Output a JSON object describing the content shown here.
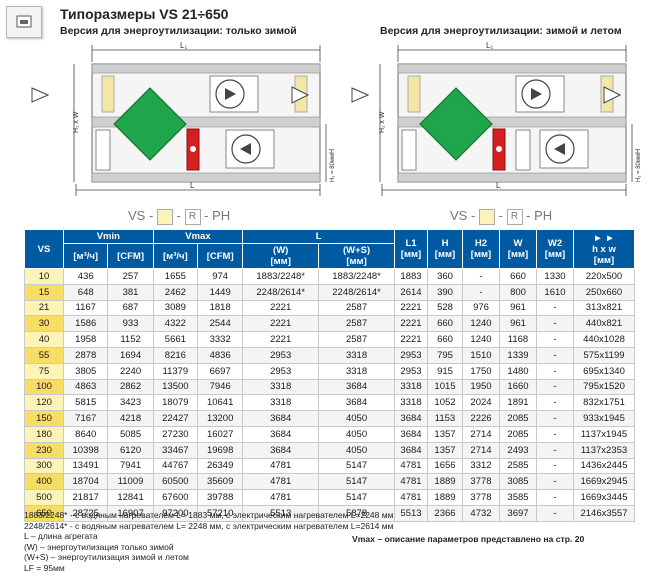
{
  "header": {
    "title": "Типоразмеры VS 21÷650",
    "left_subtitle": "Версия для энергоутилизации: только зимой",
    "right_subtitle": "Версия для энергоутилизации: зимой и летом"
  },
  "diagram": {
    "l1_label": "L₁",
    "l_label": "L",
    "hw_label": "H₁ x W",
    "h_label": "H",
    "hf_label": "H₁ = 80мм",
    "code": {
      "prefix": "VS -",
      "r": "R",
      "suffix": "- PH"
    }
  },
  "table": {
    "headers": {
      "vs": "VS",
      "vmin": "Vmin",
      "vmax": "Vmax",
      "l": "L",
      "l1": "L1",
      "l1_unit": "[мм]",
      "h": "H",
      "h_unit": "[мм]",
      "h2": "H2",
      "h2_unit": "[мм]",
      "w": "W",
      "w_unit": "[мм]",
      "w2": "W2",
      "w2_unit": "[мм]",
      "hxw": "h x w",
      "hxw_unit": "[мм]",
      "m3": "[м³/ч]",
      "cfm": "[CFM]",
      "lw": "(W)",
      "lw_unit": "[мм]",
      "lws": "(W+S)",
      "lws_unit": "[мм]"
    },
    "rows": [
      [
        "10",
        "436",
        "257",
        "1655",
        "974",
        "1883/2248*",
        "1883/2248*",
        "1883",
        "360",
        "-",
        "660",
        "1330",
        "220x500"
      ],
      [
        "15",
        "648",
        "381",
        "2462",
        "1449",
        "2248/2614*",
        "2248/2614*",
        "2614",
        "390",
        "-",
        "800",
        "1610",
        "250x660"
      ],
      [
        "21",
        "1167",
        "687",
        "3089",
        "1818",
        "2221",
        "2587",
        "2221",
        "528",
        "976",
        "961",
        "-",
        "313x821"
      ],
      [
        "30",
        "1586",
        "933",
        "4322",
        "2544",
        "2221",
        "2587",
        "2221",
        "660",
        "1240",
        "961",
        "-",
        "440x821"
      ],
      [
        "40",
        "1958",
        "1152",
        "5661",
        "3332",
        "2221",
        "2587",
        "2221",
        "660",
        "1240",
        "1168",
        "-",
        "440x1028"
      ],
      [
        "55",
        "2878",
        "1694",
        "8216",
        "4836",
        "2953",
        "3318",
        "2953",
        "795",
        "1510",
        "1339",
        "-",
        "575x1199"
      ],
      [
        "75",
        "3805",
        "2240",
        "11379",
        "6697",
        "2953",
        "3318",
        "2953",
        "915",
        "1750",
        "1480",
        "-",
        "695x1340"
      ],
      [
        "100",
        "4863",
        "2862",
        "13500",
        "7946",
        "3318",
        "3684",
        "3318",
        "1015",
        "1950",
        "1660",
        "-",
        "795x1520"
      ],
      [
        "120",
        "5815",
        "3423",
        "18079",
        "10641",
        "3318",
        "3684",
        "3318",
        "1052",
        "2024",
        "1891",
        "-",
        "832x1751"
      ],
      [
        "150",
        "7167",
        "4218",
        "22427",
        "13200",
        "3684",
        "4050",
        "3684",
        "1153",
        "2226",
        "2085",
        "-",
        "933x1945"
      ],
      [
        "180",
        "8640",
        "5085",
        "27230",
        "16027",
        "3684",
        "4050",
        "3684",
        "1357",
        "2714",
        "2085",
        "-",
        "1137x1945"
      ],
      [
        "230",
        "10398",
        "6120",
        "33467",
        "19698",
        "3684",
        "4050",
        "3684",
        "1357",
        "2714",
        "2493",
        "-",
        "1137x2353"
      ],
      [
        "300",
        "13491",
        "7941",
        "44767",
        "26349",
        "4781",
        "5147",
        "4781",
        "1656",
        "3312",
        "2585",
        "-",
        "1436x2445"
      ],
      [
        "400",
        "18704",
        "11009",
        "60500",
        "35609",
        "4781",
        "5147",
        "4781",
        "1889",
        "3778",
        "3085",
        "-",
        "1669x2945"
      ],
      [
        "500",
        "21817",
        "12841",
        "67600",
        "39788",
        "4781",
        "5147",
        "4781",
        "1889",
        "3778",
        "3585",
        "-",
        "1669x3445"
      ],
      [
        "650",
        "28725",
        "16907",
        "97200",
        "57210",
        "5513",
        "5878",
        "5513",
        "2366",
        "4732",
        "3697",
        "-",
        "2146x3557"
      ]
    ]
  },
  "notes": [
    "1883/2248* - с водяным нагревателем L= 1883 мм, с электрическим нагревателем L=2248 мм",
    "2248/2614* - с водяным нагревателем L= 2248 мм, с электрическим нагревателем L=2614 мм",
    "L – длина агрегата",
    "(W) – энергоутилизация только зимой",
    "(W+S) – энергоутилизация зимой и летом",
    "LF = 95мм"
  ],
  "vmax_note": "Vmax – описание параметров представлено на стр. 20",
  "colors": {
    "header_blue": "#005aa1",
    "vs_cell": "#fcf3b6",
    "vs_cell_alt": "#f6dd63",
    "heat_exchanger": "#1fa54a",
    "heater": "#d42020"
  }
}
